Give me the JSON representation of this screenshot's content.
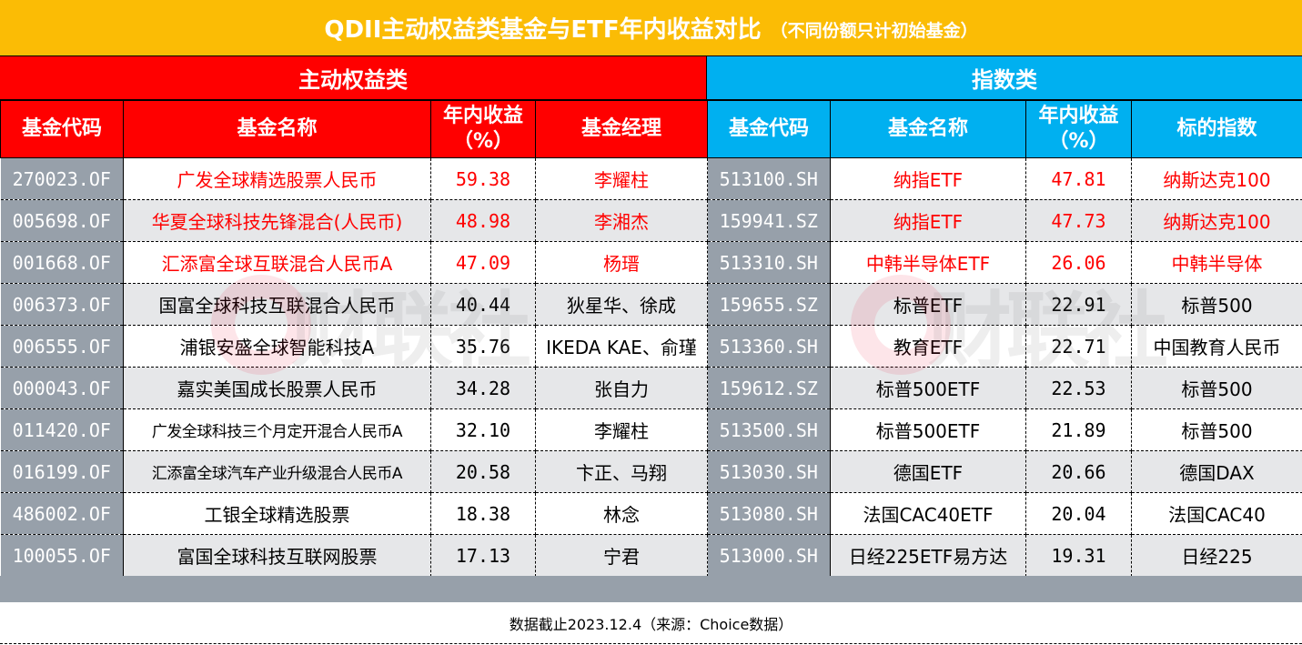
{
  "title": {
    "main": "QDII主动权益类基金与ETF年内收益对比",
    "sub": "（不同份额只计初始基金）"
  },
  "colors": {
    "title_bg": "#FBBC05",
    "active_header_bg": "#FF0000",
    "index_header_bg": "#00B0F0",
    "code_column_bg": "#97A0AA",
    "row_alt_bg": "#E6E7E9",
    "highlight_text": "#FF0000"
  },
  "active_equity": {
    "section_label": "主动权益类",
    "headers": {
      "code": "基金代码",
      "name": "基金名称",
      "return_line1": "年内收益",
      "return_line2": "（%）",
      "manager": "基金经理"
    },
    "rows": [
      {
        "code": "270023.OF",
        "name": "广发全球精选股票人民币",
        "return": "59.38",
        "manager": "李耀柱",
        "highlight": true
      },
      {
        "code": "005698.OF",
        "name": "华夏全球科技先锋混合(人民币)",
        "return": "48.98",
        "manager": "李湘杰",
        "highlight": true
      },
      {
        "code": "001668.OF",
        "name": "汇添富全球互联混合人民币A",
        "return": "47.09",
        "manager": "杨瑨",
        "highlight": true
      },
      {
        "code": "006373.OF",
        "name": "国富全球科技互联混合人民币",
        "return": "40.44",
        "manager": "狄星华、徐成",
        "highlight": false
      },
      {
        "code": "006555.OF",
        "name": "浦银安盛全球智能科技A",
        "return": "35.76",
        "manager": "IKEDA KAE、俞瑾",
        "highlight": false
      },
      {
        "code": "000043.OF",
        "name": "嘉实美国成长股票人民币",
        "return": "34.28",
        "manager": "张自力",
        "highlight": false
      },
      {
        "code": "011420.OF",
        "name": "广发全球科技三个月定开混合人民币A",
        "return": "32.10",
        "manager": "李耀柱",
        "highlight": false
      },
      {
        "code": "016199.OF",
        "name": "汇添富全球汽车产业升级混合人民币A",
        "return": "20.58",
        "manager": "卞正、马翔",
        "highlight": false
      },
      {
        "code": "486002.OF",
        "name": "工银全球精选股票",
        "return": "18.38",
        "manager": "林念",
        "highlight": false
      },
      {
        "code": "100055.OF",
        "name": "富国全球科技互联网股票",
        "return": "17.13",
        "manager": "宁君",
        "highlight": false
      }
    ]
  },
  "index_funds": {
    "section_label": "指数类",
    "headers": {
      "code": "基金代码",
      "name": "基金名称",
      "return_line1": "年内收益",
      "return_line2": "（%）",
      "index": "标的指数"
    },
    "rows": [
      {
        "code": "513100.SH",
        "name": "纳指ETF",
        "return": "47.81",
        "index": "纳斯达克100",
        "highlight": true
      },
      {
        "code": "159941.SZ",
        "name": "纳指ETF",
        "return": "47.73",
        "index": "纳斯达克100",
        "highlight": true
      },
      {
        "code": "513310.SH",
        "name": "中韩半导体ETF",
        "return": "26.06",
        "index": "中韩半导体",
        "highlight": true
      },
      {
        "code": "159655.SZ",
        "name": "标普ETF",
        "return": "22.91",
        "index": "标普500",
        "highlight": false
      },
      {
        "code": "513360.SH",
        "name": "教育ETF",
        "return": "22.71",
        "index": "中国教育人民币",
        "highlight": false
      },
      {
        "code": "159612.SZ",
        "name": "标普500ETF",
        "return": "22.53",
        "index": "标普500",
        "highlight": false
      },
      {
        "code": "513500.SH",
        "name": "标普500ETF",
        "return": "21.89",
        "index": "标普500",
        "highlight": false
      },
      {
        "code": "513030.SH",
        "name": "德国ETF",
        "return": "20.66",
        "index": "德国DAX",
        "highlight": false
      },
      {
        "code": "513080.SH",
        "name": "法国CAC40ETF",
        "return": "20.04",
        "index": "法国CAC40",
        "highlight": false
      },
      {
        "code": "513000.SH",
        "name": "日经225ETF易方达",
        "return": "19.31",
        "index": "日经225",
        "highlight": false
      }
    ]
  },
  "footer": {
    "note": "数据截止2023.12.4（来源：Choice数据）"
  },
  "watermark": {
    "text": "财联社"
  }
}
